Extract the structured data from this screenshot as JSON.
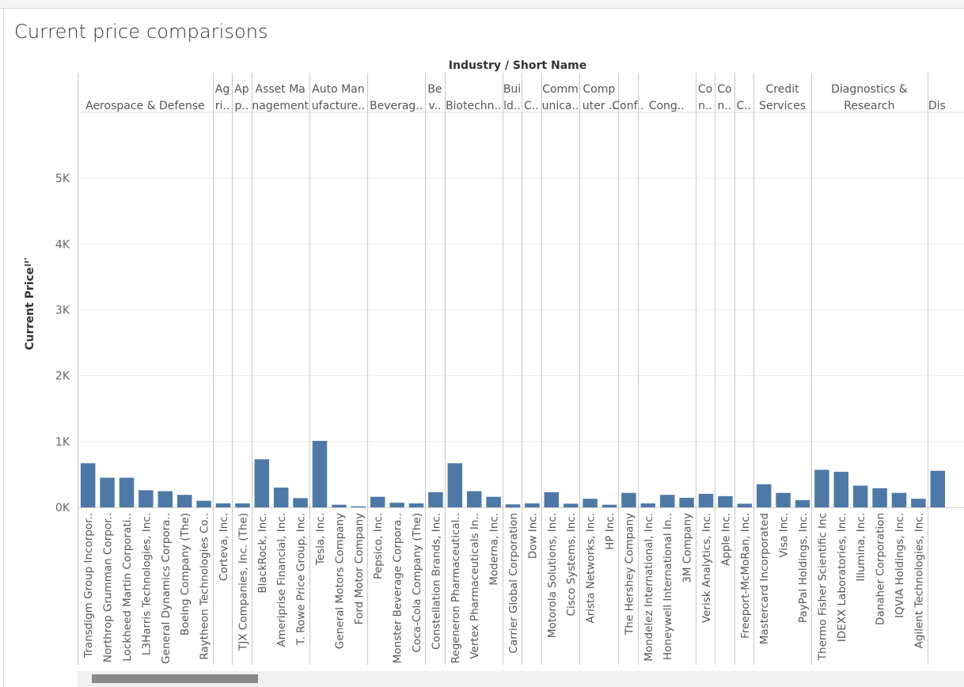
{
  "page": {
    "title": "Current price comparisons"
  },
  "chart_data": {
    "type": "bar",
    "header_title": "Industry / Short Name",
    "ylabel": "Current Price",
    "ylim": [
      0,
      6000
    ],
    "y_ticks": [
      0,
      1000,
      2000,
      3000,
      4000,
      5000
    ],
    "y_tick_labels": [
      "0K",
      "1K",
      "2K",
      "3K",
      "4K",
      "5K"
    ],
    "grid": true,
    "bar_color": "#4e79a7",
    "groups": [
      {
        "label": [
          "Aerospace & Defense"
        ],
        "bars": [
          {
            "name": "Transdigm Group Incorpor..",
            "value": 670
          },
          {
            "name": "Northrop Grumman Corpor..",
            "value": 450
          },
          {
            "name": "Lockheed Martin Corporati..",
            "value": 450
          },
          {
            "name": "L3Harris Technologies, Inc.",
            "value": 260
          },
          {
            "name": "General Dynamics Corpora..",
            "value": 245
          },
          {
            "name": "Boeing Company (The)",
            "value": 190
          },
          {
            "name": "Raytheon Technologies Co..",
            "value": 100
          }
        ]
      },
      {
        "label": [
          "Ag",
          "ri.."
        ],
        "bars": [
          {
            "name": "Corteva, Inc.",
            "value": 60
          }
        ]
      },
      {
        "label": [
          "Ap",
          "p.."
        ],
        "bars": [
          {
            "name": "TJX Companies, Inc. (The)",
            "value": 60
          }
        ]
      },
      {
        "label": [
          "Asset Ma",
          "nagement"
        ],
        "bars": [
          {
            "name": "BlackRock, Inc.",
            "value": 730
          },
          {
            "name": "Ameriprise Financial, Inc.",
            "value": 300
          },
          {
            "name": "T. Rowe Price Group, Inc.",
            "value": 140
          }
        ]
      },
      {
        "label": [
          "Auto Man",
          "ufacture.."
        ],
        "bars": [
          {
            "name": "Tesla, Inc.",
            "value": 1010
          },
          {
            "name": "General Motors Company",
            "value": 40
          },
          {
            "name": "Ford Motor Company",
            "value": 15
          }
        ]
      },
      {
        "label": [
          "Beverag.."
        ],
        "bars": [
          {
            "name": "Pepsico, Inc.",
            "value": 160
          },
          {
            "name": "Monster Beverage Corpora..",
            "value": 70
          },
          {
            "name": "Coca-Cola Company (The)",
            "value": 60
          }
        ]
      },
      {
        "label": [
          "Be",
          "v.."
        ],
        "bars": [
          {
            "name": "Constellation Brands, Inc.",
            "value": 230
          }
        ]
      },
      {
        "label": [
          "Biotechn.."
        ],
        "bars": [
          {
            "name": "Regeneron Pharmaceutical..",
            "value": 670
          },
          {
            "name": "Vertex Pharmaceuticals In..",
            "value": 245
          },
          {
            "name": "Moderna, Inc.",
            "value": 160
          }
        ]
      },
      {
        "label": [
          "Bui",
          "ld.."
        ],
        "bars": [
          {
            "name": "Carrier Global Corporation",
            "value": 45
          }
        ]
      },
      {
        "label": [
          "C.."
        ],
        "bars": [
          {
            "name": "Dow Inc.",
            "value": 60
          }
        ]
      },
      {
        "label": [
          "Comm",
          "unica.."
        ],
        "bars": [
          {
            "name": "Motorola Solutions, Inc.",
            "value": 230
          },
          {
            "name": "Cisco Systems, Inc.",
            "value": 55
          }
        ]
      },
      {
        "label": [
          "Comp",
          "uter .."
        ],
        "bars": [
          {
            "name": "Arista Networks, Inc.",
            "value": 130
          },
          {
            "name": "HP Inc.",
            "value": 40
          }
        ]
      },
      {
        "label": [
          "Conf.."
        ],
        "bars": [
          {
            "name": "The Hershey Company",
            "value": 220
          }
        ]
      },
      {
        "label": [
          "Cong.."
        ],
        "bars": [
          {
            "name": "Mondelez International, Inc.",
            "value": 60
          },
          {
            "name": "Honeywell International In..",
            "value": 190
          },
          {
            "name": "3M Company",
            "value": 145
          }
        ]
      },
      {
        "label": [
          "Co",
          "n.."
        ],
        "bars": [
          {
            "name": "Verisk Analytics, Inc.",
            "value": 205
          }
        ]
      },
      {
        "label": [
          "Co",
          "n.."
        ],
        "bars": [
          {
            "name": "Apple Inc.",
            "value": 170
          }
        ]
      },
      {
        "label": [
          "C.."
        ],
        "bars": [
          {
            "name": "Freeport-McMoRan, Inc.",
            "value": 55
          }
        ]
      },
      {
        "label": [
          "Credit",
          "Services"
        ],
        "bars": [
          {
            "name": "Mastercard Incorporated",
            "value": 350
          },
          {
            "name": "Visa Inc.",
            "value": 220
          },
          {
            "name": "PayPal Holdings, Inc.",
            "value": 110
          }
        ]
      },
      {
        "label": [
          "Diagnostics &",
          "Research"
        ],
        "bars": [
          {
            "name": "Thermo Fisher Scientific Inc",
            "value": 570
          },
          {
            "name": "IDEXX Laboratories, Inc.",
            "value": 540
          },
          {
            "name": "Illumina, Inc.",
            "value": 330
          },
          {
            "name": "Danaher Corporation",
            "value": 290
          },
          {
            "name": "IQVIA Holdings, Inc.",
            "value": 220
          },
          {
            "name": "Agilent Technologies, Inc.",
            "value": 130
          }
        ]
      },
      {
        "label": [
          "Dis"
        ],
        "bars": [
          {
            "name": "",
            "value": 555
          }
        ]
      }
    ]
  },
  "scrollbar": {
    "position": 0.02
  }
}
